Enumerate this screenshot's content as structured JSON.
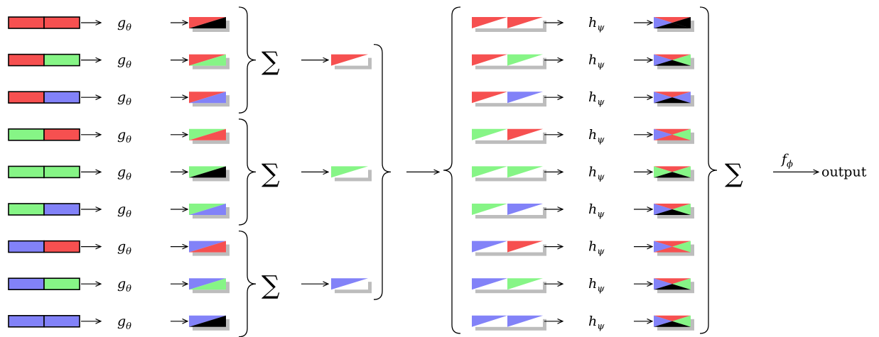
{
  "colors": {
    "red": "#f65050",
    "green": "#86f586",
    "blue": "#8282f8",
    "black": "#000000",
    "shadow": "#bdbdbd"
  },
  "labels": {
    "g": "gθ",
    "h": "hψ",
    "f": "fϕ",
    "sum": "∑",
    "output": "output"
  },
  "pairs": [
    [
      "red",
      "red"
    ],
    [
      "red",
      "green"
    ],
    [
      "red",
      "blue"
    ],
    [
      "green",
      "red"
    ],
    [
      "green",
      "green"
    ],
    [
      "green",
      "blue"
    ],
    [
      "blue",
      "red"
    ],
    [
      "blue",
      "green"
    ],
    [
      "blue",
      "blue"
    ]
  ],
  "group_colors": [
    "red",
    "green",
    "blue"
  ],
  "final_grid": [
    [
      "red",
      "black",
      "blue",
      "black"
    ],
    [
      "red",
      "green",
      "blue",
      "black"
    ],
    [
      "red",
      "blue",
      "blue",
      "black"
    ],
    [
      "red",
      "green",
      "blue",
      "red"
    ],
    [
      "red",
      "green",
      "green",
      "black"
    ],
    [
      "red",
      "green",
      "blue",
      "black"
    ],
    [
      "red",
      "green",
      "blue",
      "red"
    ],
    [
      "red",
      "green",
      "blue",
      "black"
    ],
    [
      "red",
      "green",
      "blue",
      "black"
    ]
  ]
}
